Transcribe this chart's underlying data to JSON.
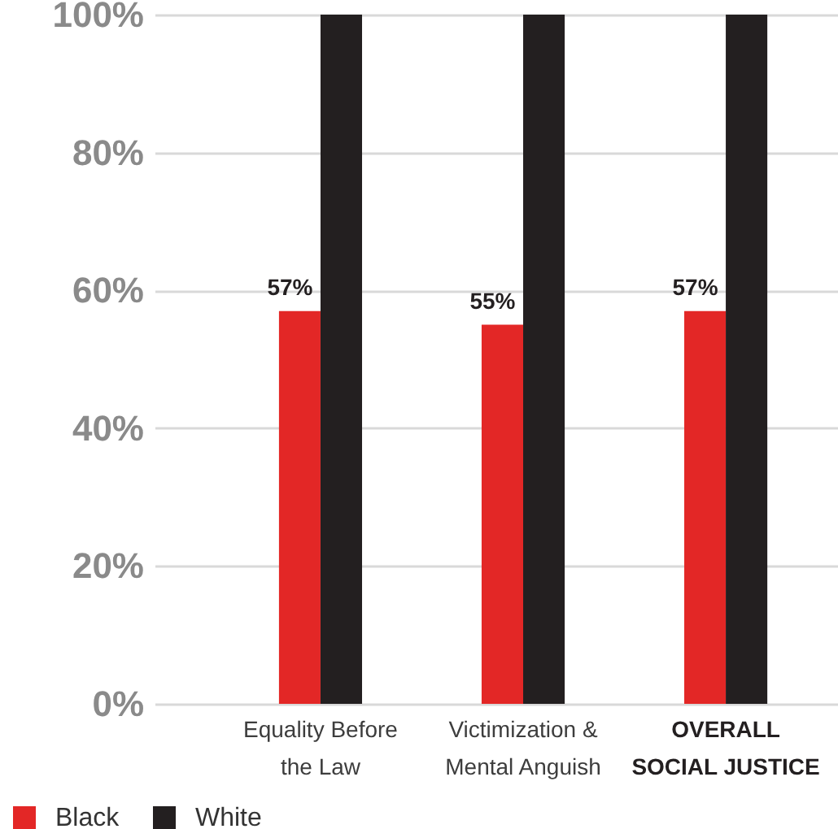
{
  "chart_data": {
    "type": "bar",
    "categories": [
      "Equality Before the Law",
      "Victimization & Mental Anguish",
      "OVERALL SOCIAL JUSTICE"
    ],
    "series": [
      {
        "name": "Black",
        "color": "#e32726",
        "values": [
          57,
          55,
          57
        ],
        "value_labels": [
          "57%",
          "55%",
          "57%"
        ]
      },
      {
        "name": "White",
        "color": "#231f20",
        "values": [
          100,
          100,
          100
        ]
      }
    ],
    "ylim": [
      0,
      100
    ],
    "yticks": [
      {
        "value": 0,
        "label": "0%"
      },
      {
        "value": 20,
        "label": "20%"
      },
      {
        "value": 40,
        "label": "40%"
      },
      {
        "value": 60,
        "label": "60%"
      },
      {
        "value": 80,
        "label": "80%"
      },
      {
        "value": 100,
        "label": "100%"
      }
    ],
    "grid": "y",
    "legend": "bottom left"
  }
}
